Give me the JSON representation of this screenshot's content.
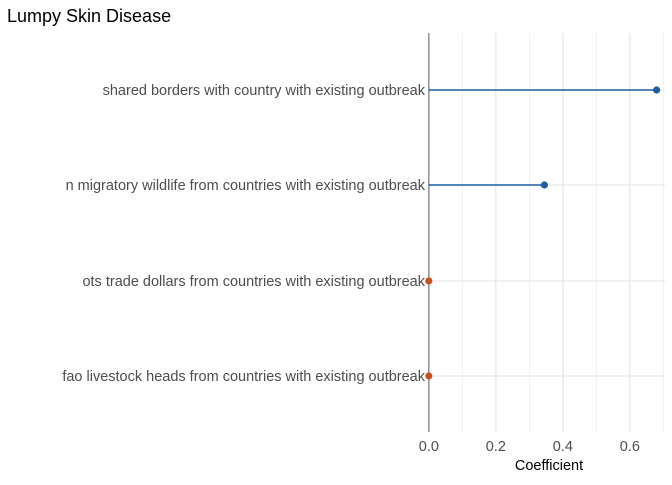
{
  "chart_data": {
    "type": "lollipop",
    "title": "Lumpy Skin Disease",
    "xlabel": "Coefficient",
    "ylabel": "",
    "xlim": [
      -0.0025,
      0.705
    ],
    "x_ticks": [
      "0.0",
      "0.2",
      "0.4",
      "0.6"
    ],
    "x_tick_values": [
      0.0,
      0.2,
      0.4,
      0.6
    ],
    "grid": true,
    "categories": [
      "shared borders with country with existing outbreak",
      "n migratory wildlife from countries with existing outbreak",
      "ots trade dollars from countries with existing outbreak",
      "fao livestock heads from countries with existing outbreak"
    ],
    "values": [
      0.68,
      0.345,
      0.0,
      0.0
    ],
    "colors": {
      "positive": "#1f5fa0",
      "zero": "#c8501e"
    }
  }
}
